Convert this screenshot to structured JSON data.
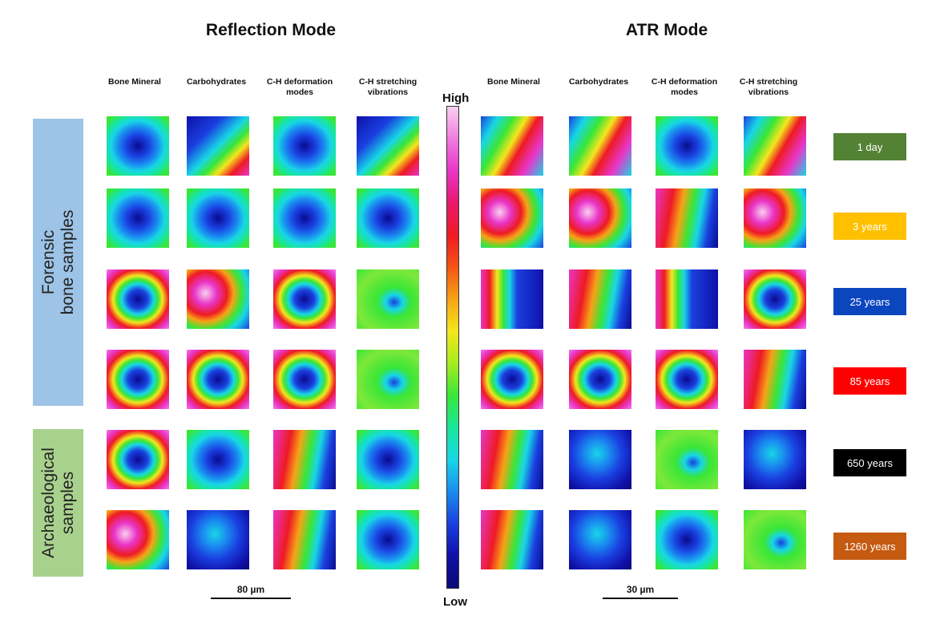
{
  "titles": {
    "reflection": "Reflection Mode",
    "atr": "ATR Mode"
  },
  "column_headers": {
    "reflection": [
      "Bone Mineral",
      "Carbohydrates",
      "C-H deformation modes",
      "C-H stretching vibrations"
    ],
    "atr": [
      "Bone Mineral",
      "Carbohydrates",
      "C-H deformation modes",
      "C-H stretching vibrations"
    ]
  },
  "groups": {
    "forensic": {
      "label_line1": "Forensic",
      "label_line2": "bone samples",
      "color": "#9dc3e6"
    },
    "archaeological": {
      "label_line1": "Archaeological",
      "label_line2": "samples",
      "color": "#a9d18e"
    }
  },
  "colorbar": {
    "high": "High",
    "low": "Low",
    "colors": [
      "#f9d0f0",
      "#f07ce0",
      "#e935c8",
      "#e8196d",
      "#ee1a24",
      "#f45414",
      "#f7a316",
      "#f4e61c",
      "#a6ec1f",
      "#39e637",
      "#19e69a",
      "#18d6e6",
      "#1a8cf0",
      "#1a40e0",
      "#1010a8",
      "#0a0a78"
    ]
  },
  "samples": [
    {
      "age": "1 day",
      "color": "#548235",
      "reflection": [
        "blue-center",
        "cyan-corner",
        "blue-center",
        "cyan-corner"
      ],
      "atr": [
        "green-mix",
        "green-mix",
        "blue-center",
        "green-mix"
      ]
    },
    {
      "age": "3 years",
      "color": "#ffc000",
      "reflection": [
        "blue-center",
        "blue-center",
        "blue-center",
        "blue-center"
      ],
      "atr": [
        "pink-mix",
        "pink-mix",
        "red-mix",
        "pink-mix"
      ]
    },
    {
      "age": "25 years",
      "color": "#0c46bf",
      "reflection": [
        "ring",
        "pink-mix",
        "ring",
        "green-flat"
      ],
      "atr": [
        "blue-right",
        "red-mix",
        "blue-right",
        "ring"
      ]
    },
    {
      "age": "85 years",
      "color": "#ff0000",
      "reflection": [
        "ring",
        "ring",
        "ring",
        "green-flat"
      ],
      "atr": [
        "ring",
        "ring",
        "ring",
        "red-mix"
      ]
    },
    {
      "age": "650 years",
      "color": "#000000",
      "reflection": [
        "ring",
        "blue-center",
        "red-mix",
        "blue-center"
      ],
      "atr": [
        "red-mix",
        "blue-flat",
        "green-flat",
        "blue-flat"
      ]
    },
    {
      "age": "1260 years",
      "color": "#c55a11",
      "reflection": [
        "pink-mix",
        "blue-flat",
        "red-mix",
        "blue-center"
      ],
      "atr": [
        "red-mix",
        "blue-flat",
        "blue-center",
        "green-flat"
      ]
    }
  ],
  "scale_bars": {
    "reflection": "80 µm",
    "atr": "30 µm"
  }
}
